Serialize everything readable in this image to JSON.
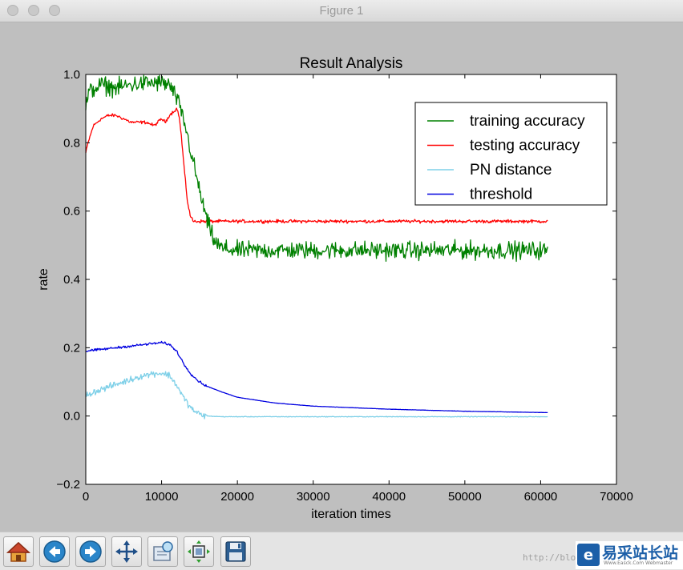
{
  "window": {
    "title": "Figure 1"
  },
  "watermark": {
    "url": "http://blo",
    "logo_mark": "e",
    "logo_text": "易采站长站",
    "logo_sub": "Www.Easck.Com Webmaster"
  },
  "toolbar": {
    "buttons": [
      {
        "name": "home-button",
        "icon": "home-icon"
      },
      {
        "name": "back-button",
        "icon": "arrow-left-icon"
      },
      {
        "name": "forward-button",
        "icon": "arrow-right-icon"
      },
      {
        "name": "pan-button",
        "icon": "move-icon"
      },
      {
        "name": "zoom-button",
        "icon": "zoom-rect-icon"
      },
      {
        "name": "subplots-button",
        "icon": "subplots-icon"
      },
      {
        "name": "save-button",
        "icon": "floppy-disk-icon"
      }
    ]
  },
  "chart_data": {
    "type": "line",
    "title": "Result Analysis",
    "xlabel": "iteration times",
    "ylabel": "rate",
    "xlim": [
      0,
      70000
    ],
    "ylim": [
      -0.2,
      1.0
    ],
    "xticks": [
      0,
      10000,
      20000,
      30000,
      40000,
      50000,
      60000,
      70000
    ],
    "yticks": [
      -0.2,
      0.0,
      0.2,
      0.4,
      0.6,
      0.8,
      1.0
    ],
    "xtick_labels": [
      "0",
      "10000",
      "20000",
      "30000",
      "40000",
      "50000",
      "60000",
      "70000"
    ],
    "ytick_labels": [
      "−0.2",
      "0.0",
      "0.2",
      "0.4",
      "0.6",
      "0.8",
      "1.0"
    ],
    "grid": false,
    "legend_position": "top-right",
    "series": [
      {
        "name": "training accuracy",
        "color": "#008000",
        "noise": 0.022,
        "x": [
          0,
          500,
          2000,
          4000,
          6000,
          8000,
          10000,
          11000,
          12000,
          13000,
          14000,
          15000,
          16000,
          17000,
          18000,
          20000,
          30000,
          40000,
          50000,
          60000,
          61000
        ],
        "y": [
          0.91,
          0.95,
          0.97,
          0.96,
          0.97,
          0.975,
          0.975,
          0.97,
          0.93,
          0.86,
          0.76,
          0.66,
          0.57,
          0.51,
          0.49,
          0.485,
          0.485,
          0.485,
          0.485,
          0.485,
          0.485
        ]
      },
      {
        "name": "testing accuracy",
        "color": "#ff0000",
        "noise": 0.004,
        "x": [
          0,
          300,
          1000,
          2000,
          3000,
          4000,
          5000,
          6000,
          7000,
          8000,
          9000,
          10000,
          10500,
          11000,
          11500,
          12000,
          12300,
          12600,
          13000,
          13400,
          13800,
          14200,
          20000,
          30000,
          40000,
          50000,
          60000,
          61000
        ],
        "y": [
          0.77,
          0.8,
          0.85,
          0.87,
          0.88,
          0.88,
          0.87,
          0.86,
          0.86,
          0.86,
          0.85,
          0.87,
          0.86,
          0.88,
          0.89,
          0.9,
          0.88,
          0.82,
          0.72,
          0.63,
          0.585,
          0.57,
          0.57,
          0.57,
          0.57,
          0.57,
          0.57,
          0.57
        ]
      },
      {
        "name": "PN distance",
        "color": "#7fd0e8",
        "noise": 0.008,
        "x": [
          0,
          1000,
          3000,
          5000,
          7000,
          9000,
          10000,
          11000,
          12000,
          13000,
          14000,
          15000,
          16000,
          18000,
          20000,
          30000,
          40000,
          50000,
          60000,
          61000
        ],
        "y": [
          0.06,
          0.07,
          0.085,
          0.1,
          0.115,
          0.125,
          0.125,
          0.12,
          0.09,
          0.05,
          0.02,
          0.005,
          0.0,
          -0.002,
          -0.002,
          -0.002,
          -0.002,
          -0.002,
          -0.002,
          -0.002
        ]
      },
      {
        "name": "threshold",
        "color": "#0000e0",
        "noise": 0.003,
        "x": [
          0,
          2000,
          4000,
          6000,
          8000,
          10000,
          11000,
          12000,
          13000,
          14000,
          15000,
          16000,
          18000,
          20000,
          25000,
          30000,
          40000,
          50000,
          61000
        ],
        "y": [
          0.19,
          0.195,
          0.2,
          0.205,
          0.21,
          0.215,
          0.21,
          0.19,
          0.15,
          0.12,
          0.1,
          0.087,
          0.07,
          0.055,
          0.038,
          0.029,
          0.02,
          0.014,
          0.01
        ]
      }
    ]
  }
}
